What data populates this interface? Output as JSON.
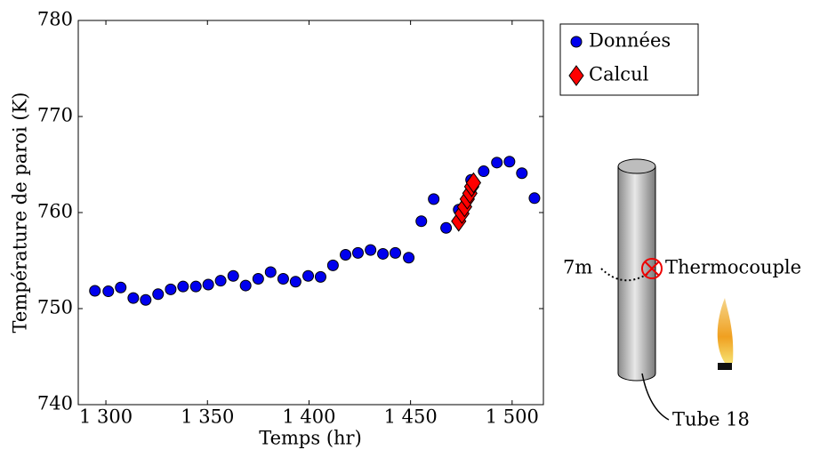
{
  "chart_data": {
    "type": "scatter",
    "xlabel": "Temps (hr)",
    "ylabel": "Température de paroi (K)",
    "xlim": [
      1286.4,
      1515.4
    ],
    "ylim": [
      740,
      780
    ],
    "xticks": [
      {
        "value": 1300,
        "label": "1 300"
      },
      {
        "value": 1350,
        "label": "1 350"
      },
      {
        "value": 1400,
        "label": "1 400"
      },
      {
        "value": 1450,
        "label": "1 450"
      },
      {
        "value": 1500,
        "label": "1 500"
      }
    ],
    "yticks": [
      740,
      750,
      760,
      770,
      780
    ],
    "legend": "outside-top-right",
    "series": [
      {
        "name": "Données",
        "color": "#0000ee",
        "marker": "circle",
        "x": [
          1294.6,
          1301.2,
          1307.3,
          1313.5,
          1319.6,
          1325.7,
          1331.9,
          1338.0,
          1344.3,
          1350.4,
          1356.5,
          1362.7,
          1368.8,
          1375.0,
          1381.1,
          1387.3,
          1393.4,
          1399.6,
          1405.7,
          1411.8,
          1418.0,
          1424.1,
          1430.3,
          1436.4,
          1442.5,
          1449.1,
          1455.3,
          1461.4,
          1467.5,
          1473.7,
          1479.8,
          1486.0,
          1492.5,
          1498.7,
          1504.8,
          1511.0
        ],
        "values": [
          751.85,
          751.8,
          752.2,
          751.1,
          750.9,
          751.5,
          752.0,
          752.3,
          752.3,
          752.5,
          752.9,
          753.4,
          752.4,
          753.1,
          753.8,
          753.1,
          752.8,
          753.4,
          753.3,
          754.5,
          755.6,
          755.8,
          756.1,
          755.7,
          755.8,
          755.3,
          759.1,
          761.4,
          758.4,
          760.3,
          763.4,
          764.3,
          765.2,
          765.3,
          764.1,
          761.5
        ]
      },
      {
        "name": "Calcul",
        "color": "#ff0000",
        "marker": "diamond",
        "x": [
          1473.7,
          1475.3,
          1476.6,
          1477.9,
          1479.2,
          1480.1,
          1481.0
        ],
        "values": [
          759.1,
          759.9,
          760.6,
          761.4,
          762.0,
          762.7,
          763.1
        ]
      }
    ],
    "annotations": {
      "depth": "7m",
      "sensor": "Thermocouple",
      "tube": "Tube 18"
    }
  }
}
